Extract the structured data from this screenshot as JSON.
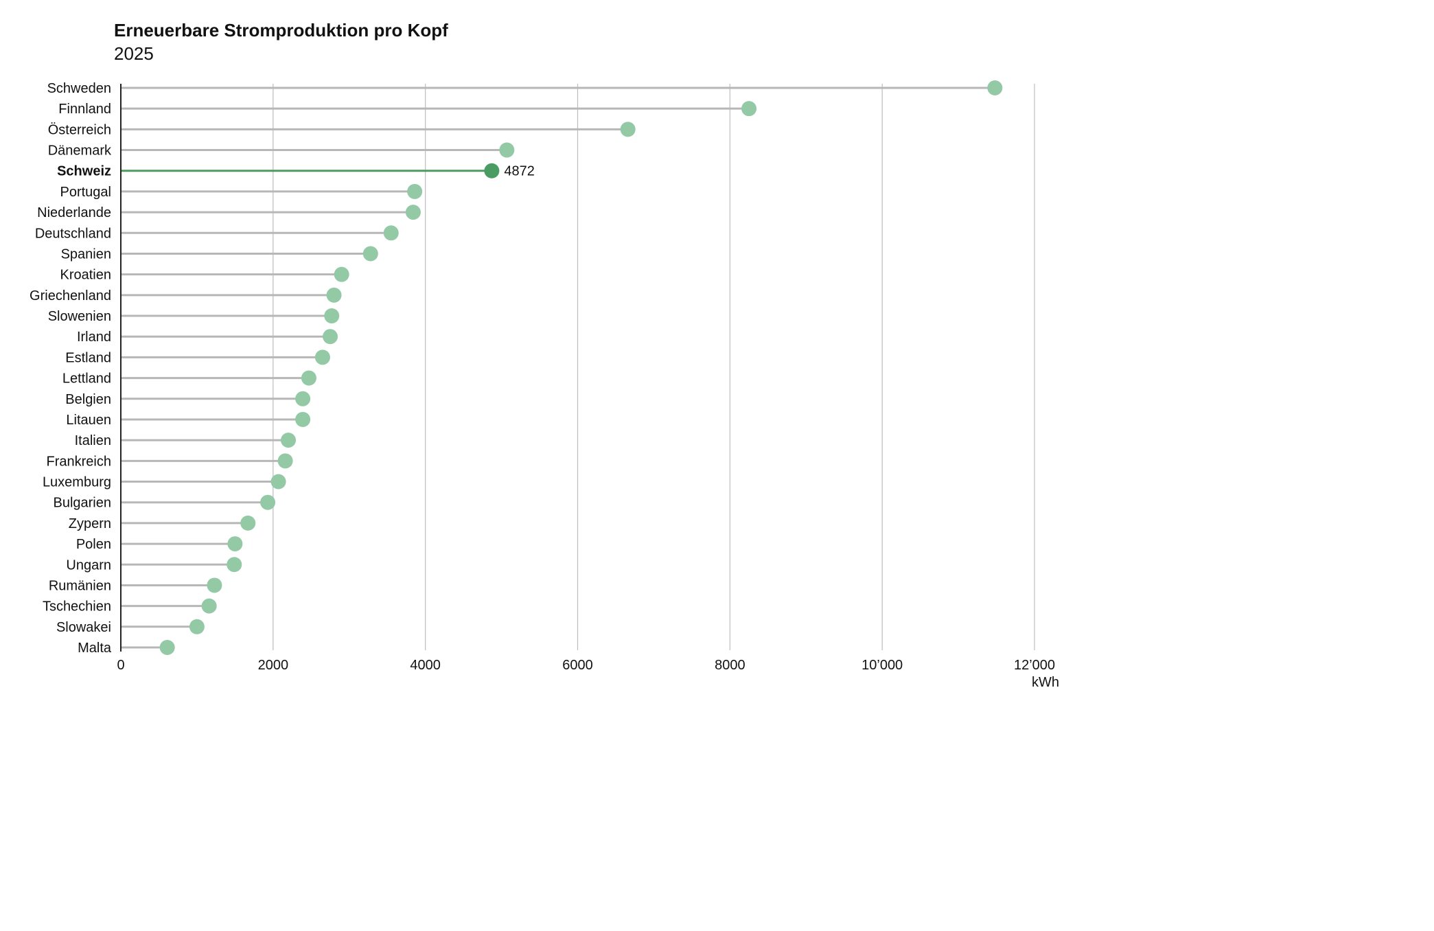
{
  "chart_data": {
    "type": "lollipop",
    "title": "Erneuerbare Stromproduktion pro Kopf",
    "subtitle": "2025",
    "xlabel": "",
    "ylabel": "",
    "unit": "kWh",
    "xlim": [
      0,
      12000
    ],
    "xticks": [
      0,
      2000,
      4000,
      6000,
      8000,
      10000,
      12000
    ],
    "xtick_labels": [
      "0",
      "2000",
      "4000",
      "6000",
      "8000",
      "10’000",
      "12’000"
    ],
    "grid": "vertical",
    "categories": [
      "Schweden",
      "Finnland",
      "Österreich",
      "Dänemark",
      "Schweiz",
      "Portugal",
      "Niederlande",
      "Deutschland",
      "Spanien",
      "Kroatien",
      "Griechenland",
      "Slowenien",
      "Irland",
      "Estland",
      "Lettland",
      "Belgien",
      "Litauen",
      "Italien",
      "Frankreich",
      "Luxemburg",
      "Bulgarien",
      "Zypern",
      "Polen",
      "Ungarn",
      "Rumänien",
      "Tschechien",
      "Slowakei",
      "Malta"
    ],
    "values": [
      11480,
      8250,
      6660,
      5070,
      4872,
      3860,
      3840,
      3550,
      3280,
      2900,
      2800,
      2770,
      2750,
      2650,
      2470,
      2390,
      2390,
      2200,
      2160,
      2070,
      1930,
      1670,
      1500,
      1490,
      1230,
      1160,
      1000,
      610
    ],
    "highlight": {
      "category": "Schweiz",
      "value_label": "4872"
    },
    "colors": {
      "highlight": "#4a9c62",
      "dot": "#93c9a5",
      "stem": "#b7b7b7",
      "highlight_stem": "#4a9c62",
      "grid": "#bdbdbd",
      "axis": "#222222",
      "text": "#111111"
    }
  }
}
